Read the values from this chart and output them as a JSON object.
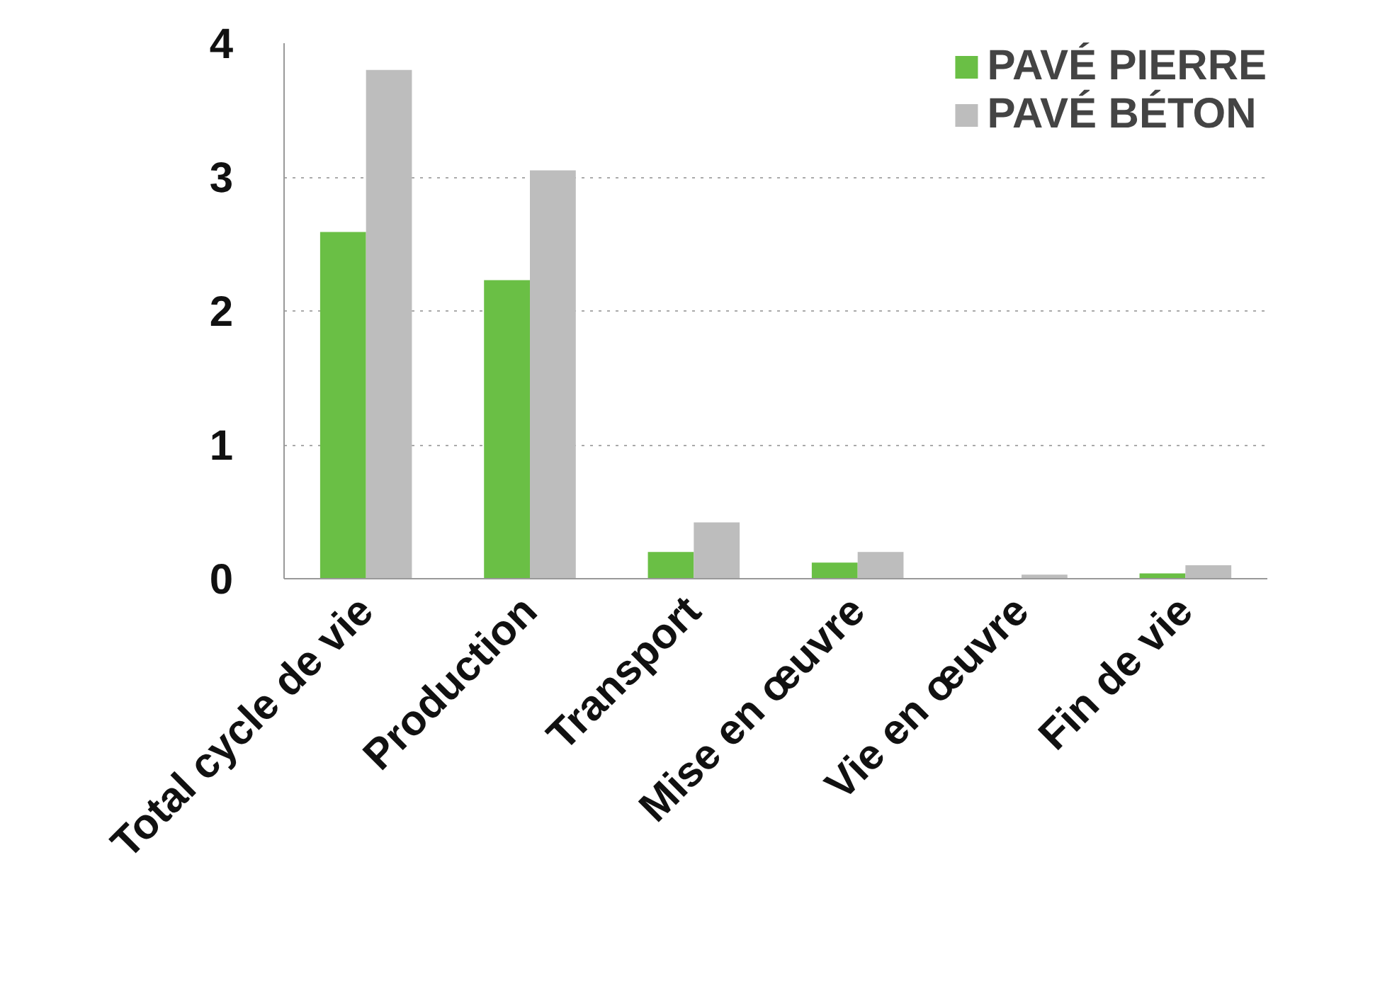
{
  "chart_data": {
    "type": "bar",
    "categories": [
      "Total cycle de vie",
      "Production",
      "Transport",
      "Mise en œuvre",
      "Vie en œuvre",
      "Fin de vie"
    ],
    "series": [
      {
        "name": "PAVÉ PIERRE",
        "color": "#6abf45",
        "values": [
          2.59,
          2.23,
          0.2,
          0.12,
          0,
          0.04
        ]
      },
      {
        "name": "PAVÉ BÉTON",
        "color": "#bdbdbd",
        "values": [
          3.8,
          3.05,
          0.42,
          0.2,
          0.03,
          0.1
        ]
      }
    ],
    "ylim": [
      0,
      4
    ],
    "yticks": [
      0,
      1,
      2,
      3,
      4
    ],
    "grid": "y",
    "legend": "top right"
  }
}
